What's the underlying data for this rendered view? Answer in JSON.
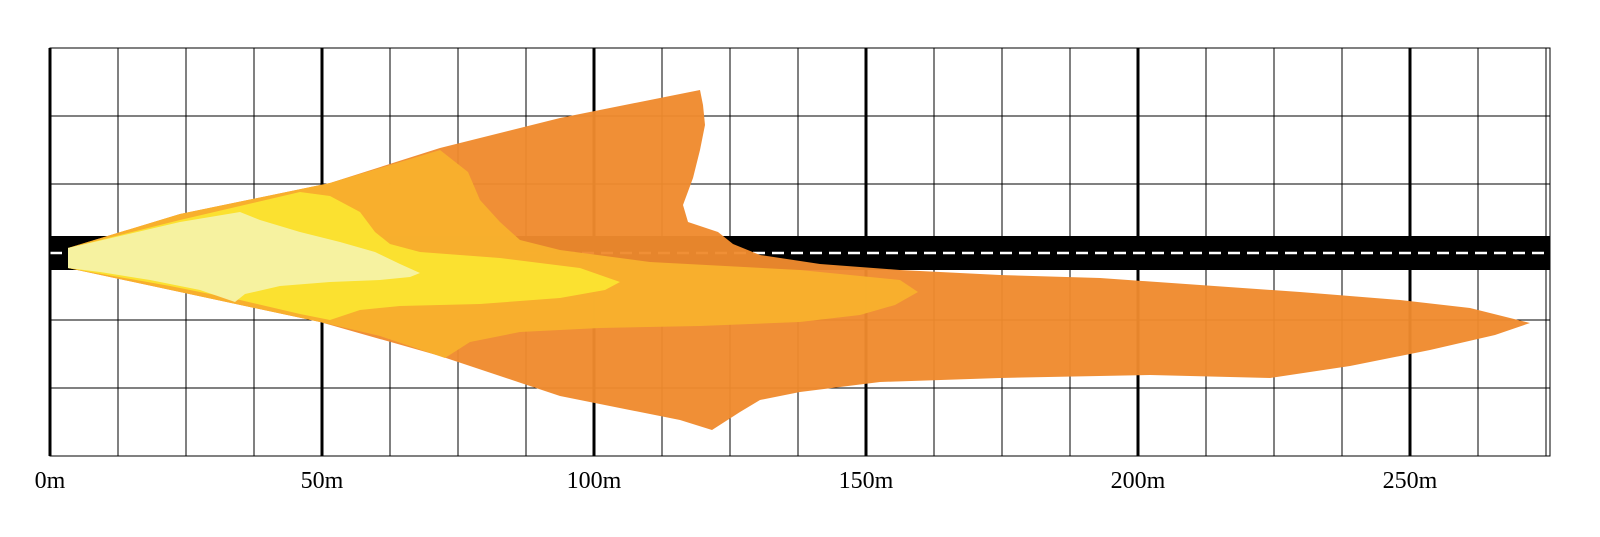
{
  "diagram": {
    "type": "headlight-beam-pattern",
    "x_axis": {
      "unit": "m",
      "min": 0,
      "max": 275,
      "major_step": 50,
      "minor_step": 12.5,
      "tick_labels": [
        "0m",
        "50m",
        "100m",
        "150m",
        "200m",
        "250m"
      ]
    },
    "road": {
      "color": "#000000",
      "center_line_color": "#ffffff",
      "center_line_style": "dashed"
    },
    "zones": [
      {
        "id": "zone-4",
        "color": "#ef8a2e"
      },
      {
        "id": "zone-3",
        "color": "#f8b12d"
      },
      {
        "id": "zone-2",
        "color": "#fbe331"
      },
      {
        "id": "zone-1",
        "color": "#f6f3a4"
      }
    ]
  }
}
